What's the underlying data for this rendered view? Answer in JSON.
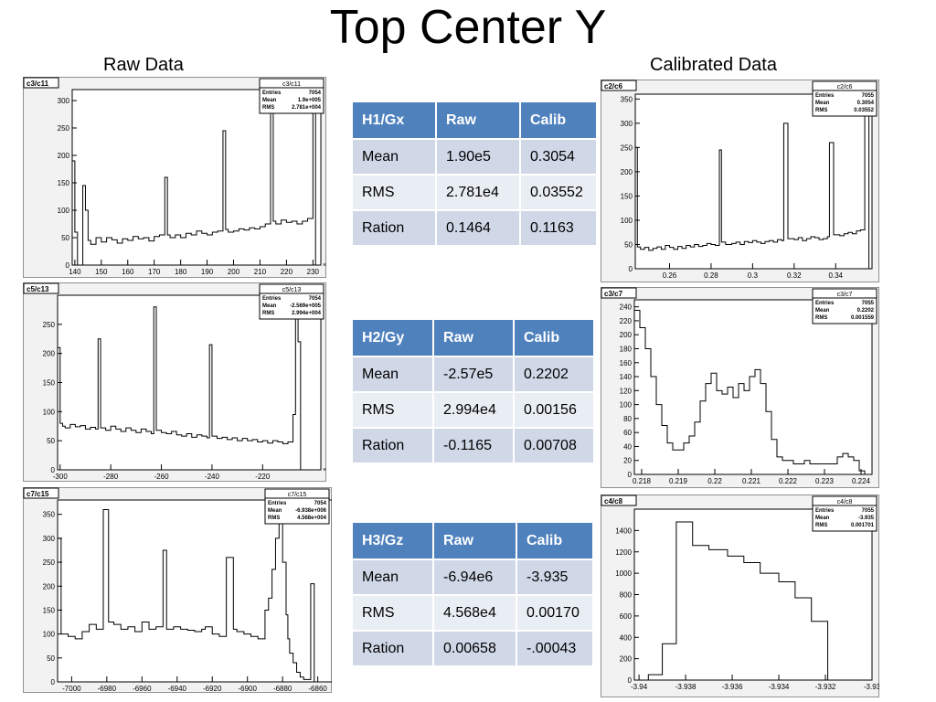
{
  "title": "Top Center Y",
  "headers": {
    "raw": "Raw Data",
    "calibrated": "Calibrated Data"
  },
  "tables": [
    {
      "columns": [
        "H1/Gx",
        "Raw",
        "Calib"
      ],
      "rows": [
        [
          "Mean",
          "1.90e5",
          "0.3054"
        ],
        [
          "RMS",
          "2.781e4",
          "0.03552"
        ],
        [
          "Ration",
          "0.1464",
          "0.1163"
        ]
      ]
    },
    {
      "columns": [
        "H2/Gy",
        "Raw",
        "Calib"
      ],
      "rows": [
        [
          "Mean",
          "-2.57e5",
          "0.2202"
        ],
        [
          "RMS",
          "2.994e4",
          "0.00156"
        ],
        [
          "Ration",
          "-0.1165",
          "0.00708"
        ]
      ]
    },
    {
      "columns": [
        "H3/Gz",
        "Raw",
        "Calib"
      ],
      "rows": [
        [
          "Mean",
          "-6.94e6",
          "-3.935"
        ],
        [
          "RMS",
          "4.568e4",
          "0.00170"
        ],
        [
          "Ration",
          "0.00658",
          "-.00043"
        ]
      ]
    }
  ],
  "chart_data": [
    {
      "type": "histogram",
      "canvas_label": "c3/c11",
      "stats": {
        "title": "c3/c11",
        "rows": [
          [
            "Entries",
            "7054"
          ],
          [
            "Mean",
            "1.9e+005"
          ],
          [
            "RMS",
            "2.781e+004"
          ]
        ]
      },
      "xlim": [
        139,
        233
      ],
      "ylim": [
        0,
        320
      ],
      "xticks": [
        "140",
        "150",
        "160",
        "170",
        "180",
        "190",
        "200",
        "210",
        "220",
        "230"
      ],
      "xtick_values": [
        140,
        150,
        160,
        170,
        180,
        190,
        200,
        210,
        220,
        230
      ],
      "yticks": [
        "0",
        "50",
        "100",
        "150",
        "200",
        "250",
        "300"
      ],
      "ytick_values": [
        0,
        50,
        100,
        150,
        200,
        250,
        300
      ],
      "exponent": "×10³",
      "x": [
        139,
        140,
        141,
        142,
        143,
        144,
        145,
        146,
        148,
        150,
        152,
        154,
        156,
        158,
        160,
        162,
        164,
        166,
        168,
        170,
        172,
        174,
        175,
        176,
        178,
        180,
        182,
        184,
        186,
        188,
        190,
        192,
        194,
        196,
        197,
        198,
        200,
        202,
        204,
        206,
        208,
        210,
        212,
        214,
        215,
        216,
        218,
        220,
        222,
        224,
        226,
        228,
        230,
        231,
        232
      ],
      "values": [
        190,
        60,
        0,
        0,
        145,
        100,
        45,
        38,
        50,
        42,
        50,
        46,
        40,
        48,
        45,
        52,
        48,
        50,
        44,
        52,
        55,
        160,
        55,
        50,
        55,
        50,
        58,
        55,
        62,
        58,
        55,
        60,
        62,
        245,
        65,
        60,
        62,
        66,
        64,
        68,
        66,
        70,
        75,
        295,
        80,
        75,
        82,
        78,
        80,
        75,
        80,
        85,
        300,
        0,
        0
      ]
    },
    {
      "type": "histogram",
      "canvas_label": "c5/c13",
      "stats": {
        "title": "c5/c13",
        "rows": [
          [
            "Entries",
            "7054"
          ],
          [
            "Mean",
            "-2.569e+005"
          ],
          [
            "RMS",
            "2.994e+004"
          ]
        ]
      },
      "xlim": [
        -301,
        -197
      ],
      "ylim": [
        0,
        300
      ],
      "xticks": [
        "-300",
        "-280",
        "-260",
        "-240",
        "-220"
      ],
      "xtick_values": [
        -300,
        -280,
        -260,
        -240,
        -220
      ],
      "yticks": [
        "0",
        "50",
        "100",
        "150",
        "200",
        "250"
      ],
      "ytick_values": [
        0,
        50,
        100,
        150,
        200,
        250
      ],
      "exponent": "×10³",
      "x": [
        -301,
        -300,
        -299,
        -298,
        -296,
        -294,
        -292,
        -290,
        -288,
        -286,
        -285,
        -284,
        -282,
        -280,
        -278,
        -276,
        -274,
        -272,
        -270,
        -268,
        -266,
        -264,
        -263,
        -262,
        -260,
        -258,
        -256,
        -254,
        -252,
        -250,
        -248,
        -246,
        -244,
        -242,
        -241,
        -240,
        -238,
        -236,
        -234,
        -232,
        -230,
        -228,
        -226,
        -224,
        -222,
        -220,
        -218,
        -216,
        -214,
        -212,
        -210,
        -208,
        -207,
        -206,
        -205
      ],
      "values": [
        210,
        80,
        75,
        72,
        78,
        74,
        76,
        70,
        73,
        70,
        225,
        72,
        68,
        75,
        70,
        66,
        72,
        68,
        64,
        70,
        66,
        62,
        280,
        68,
        64,
        62,
        66,
        60,
        58,
        62,
        56,
        60,
        58,
        55,
        215,
        58,
        54,
        56,
        52,
        55,
        50,
        54,
        50,
        52,
        48,
        50,
        46,
        50,
        48,
        45,
        48,
        95,
        265,
        220,
        0
      ]
    },
    {
      "type": "histogram",
      "canvas_label": "c7/c15",
      "stats": {
        "title": "c7/c15",
        "rows": [
          [
            "Entries",
            "7054"
          ],
          [
            "Mean",
            "-6.938e+006"
          ],
          [
            "RMS",
            "4.568e+004"
          ]
        ]
      },
      "xlim": [
        -7008,
        -6852
      ],
      "ylim": [
        0,
        380
      ],
      "xticks": [
        "-7000",
        "-6980",
        "-6960",
        "-6940",
        "-6920",
        "-6900",
        "-6880",
        "-6860"
      ],
      "xtick_values": [
        -7000,
        -6980,
        -6960,
        -6940,
        -6920,
        -6900,
        -6880,
        -6860
      ],
      "yticks": [
        "0",
        "50",
        "100",
        "150",
        "200",
        "250",
        "300",
        "350"
      ],
      "ytick_values": [
        0,
        50,
        100,
        150,
        200,
        250,
        300,
        350
      ],
      "exponent": "×10³",
      "x": [
        -7008,
        -7006,
        -7002,
        -6998,
        -6994,
        -6990,
        -6986,
        -6982,
        -6979,
        -6976,
        -6972,
        -6968,
        -6964,
        -6960,
        -6956,
        -6952,
        -6948,
        -6946,
        -6942,
        -6938,
        -6934,
        -6930,
        -6926,
        -6924,
        -6920,
        -6916,
        -6912,
        -6908,
        -6906,
        -6902,
        -6898,
        -6894,
        -6890,
        -6888,
        -6886,
        -6884,
        -6882,
        -6880,
        -6878,
        -6877,
        -6876,
        -6874,
        -6872,
        -6870,
        -6868,
        -6866,
        -6864,
        -6862,
        -6860
      ],
      "values": [
        300,
        100,
        95,
        90,
        105,
        120,
        110,
        360,
        125,
        120,
        110,
        115,
        105,
        125,
        110,
        115,
        275,
        110,
        115,
        110,
        108,
        105,
        110,
        115,
        100,
        95,
        260,
        110,
        105,
        100,
        95,
        90,
        150,
        175,
        235,
        300,
        355,
        250,
        140,
        90,
        60,
        40,
        20,
        10,
        5,
        5,
        205,
        0,
        0
      ]
    },
    {
      "type": "histogram",
      "canvas_label": "c2/c6",
      "stats": {
        "title": "c2/c6",
        "rows": [
          [
            "Entries",
            "7055"
          ],
          [
            "Mean",
            "0.3054"
          ],
          [
            "RMS",
            "0.03552"
          ]
        ]
      },
      "xlim": [
        0.2435,
        0.3575
      ],
      "ylim": [
        0,
        360
      ],
      "xticks": [
        "0.26",
        "0.28",
        "0.3",
        "0.32",
        "0.34"
      ],
      "xtick_values": [
        0.26,
        0.28,
        0.3,
        0.32,
        0.34
      ],
      "yticks": [
        "0",
        "50",
        "100",
        "150",
        "200",
        "250",
        "300",
        "350"
      ],
      "ytick_values": [
        0,
        50,
        100,
        150,
        200,
        250,
        300,
        350
      ],
      "x": [
        0.2435,
        0.2445,
        0.246,
        0.248,
        0.25,
        0.252,
        0.254,
        0.256,
        0.258,
        0.26,
        0.262,
        0.264,
        0.266,
        0.268,
        0.27,
        0.272,
        0.274,
        0.276,
        0.278,
        0.28,
        0.282,
        0.284,
        0.285,
        0.287,
        0.29,
        0.292,
        0.294,
        0.296,
        0.298,
        0.3,
        0.302,
        0.304,
        0.306,
        0.308,
        0.31,
        0.312,
        0.314,
        0.315,
        0.317,
        0.32,
        0.322,
        0.324,
        0.326,
        0.328,
        0.33,
        0.332,
        0.334,
        0.336,
        0.337,
        0.339,
        0.342,
        0.344,
        0.346,
        0.348,
        0.35,
        0.352,
        0.354,
        0.356
      ],
      "values": [
        250,
        45,
        40,
        44,
        38,
        42,
        45,
        40,
        48,
        44,
        40,
        46,
        42,
        48,
        45,
        50,
        46,
        48,
        52,
        50,
        48,
        245,
        55,
        50,
        52,
        55,
        50,
        56,
        54,
        58,
        55,
        52,
        56,
        58,
        55,
        60,
        58,
        300,
        62,
        60,
        64,
        58,
        62,
        66,
        64,
        60,
        62,
        66,
        260,
        70,
        68,
        72,
        75,
        72,
        78,
        80,
        345,
        0
      ]
    },
    {
      "type": "histogram",
      "canvas_label": "c3/c7",
      "stats": {
        "title": "c3/c7",
        "rows": [
          [
            "Entries",
            "7055"
          ],
          [
            "Mean",
            "0.2202"
          ],
          [
            "RMS",
            "0.001559"
          ]
        ]
      },
      "xlim": [
        0.2178,
        0.2243
      ],
      "ylim": [
        0,
        250
      ],
      "xticks": [
        "0.218",
        "0.219",
        "0.22",
        "0.221",
        "0.222",
        "0.223",
        "0.224"
      ],
      "xtick_values": [
        0.218,
        0.219,
        0.22,
        0.221,
        0.222,
        0.223,
        0.224
      ],
      "yticks": [
        "0",
        "20",
        "40",
        "60",
        "80",
        "100",
        "120",
        "140",
        "160",
        "180",
        "200",
        "220",
        "240"
      ],
      "ytick_values": [
        0,
        20,
        40,
        60,
        80,
        100,
        120,
        140,
        160,
        180,
        200,
        220,
        240
      ],
      "x": [
        0.2178,
        0.21795,
        0.2181,
        0.21825,
        0.2184,
        0.21855,
        0.2187,
        0.21885,
        0.219,
        0.21915,
        0.2193,
        0.21945,
        0.2196,
        0.21975,
        0.2199,
        0.22005,
        0.2202,
        0.22035,
        0.2205,
        0.22065,
        0.2208,
        0.22095,
        0.2211,
        0.22125,
        0.2214,
        0.22155,
        0.2217,
        0.22185,
        0.222,
        0.22215,
        0.2223,
        0.22245,
        0.2226,
        0.22275,
        0.2229,
        0.22305,
        0.2232,
        0.22335,
        0.2235,
        0.22365,
        0.2238,
        0.22395,
        0.2241
      ],
      "values": [
        235,
        210,
        180,
        140,
        100,
        70,
        45,
        35,
        35,
        45,
        55,
        75,
        105,
        130,
        145,
        120,
        115,
        125,
        110,
        130,
        120,
        140,
        150,
        130,
        90,
        50,
        25,
        20,
        20,
        15,
        15,
        20,
        15,
        15,
        15,
        15,
        15,
        25,
        30,
        25,
        20,
        5,
        0
      ]
    },
    {
      "type": "histogram",
      "canvas_label": "c4/c8",
      "stats": {
        "title": "c4/c8",
        "rows": [
          [
            "Entries",
            "7055"
          ],
          [
            "Mean",
            "-3.935"
          ],
          [
            "RMS",
            "0.001701"
          ]
        ]
      },
      "xlim": [
        -3.9402,
        -3.93
      ],
      "ylim": [
        0,
        1600
      ],
      "xticks": [
        "-3.94",
        "-3.938",
        "-3.936",
        "-3.934",
        "-3.932",
        "-3.93"
      ],
      "xtick_values": [
        -3.94,
        -3.938,
        -3.936,
        -3.934,
        -3.932,
        -3.93
      ],
      "yticks": [
        "0",
        "200",
        "400",
        "600",
        "800",
        "1000",
        "1200",
        "1400"
      ],
      "ytick_values": [
        0,
        200,
        400,
        600,
        800,
        1000,
        1200,
        1400
      ],
      "x": [
        -3.9402,
        -3.9396,
        -3.939,
        -3.9384,
        -3.9377,
        -3.937,
        -3.9362,
        -3.9355,
        -3.9348,
        -3.934,
        -3.9333,
        -3.9326,
        -3.9319,
        -3.9312
      ],
      "values": [
        0,
        50,
        340,
        1480,
        1260,
        1220,
        1160,
        1100,
        1000,
        920,
        770,
        550,
        0,
        0
      ]
    }
  ]
}
